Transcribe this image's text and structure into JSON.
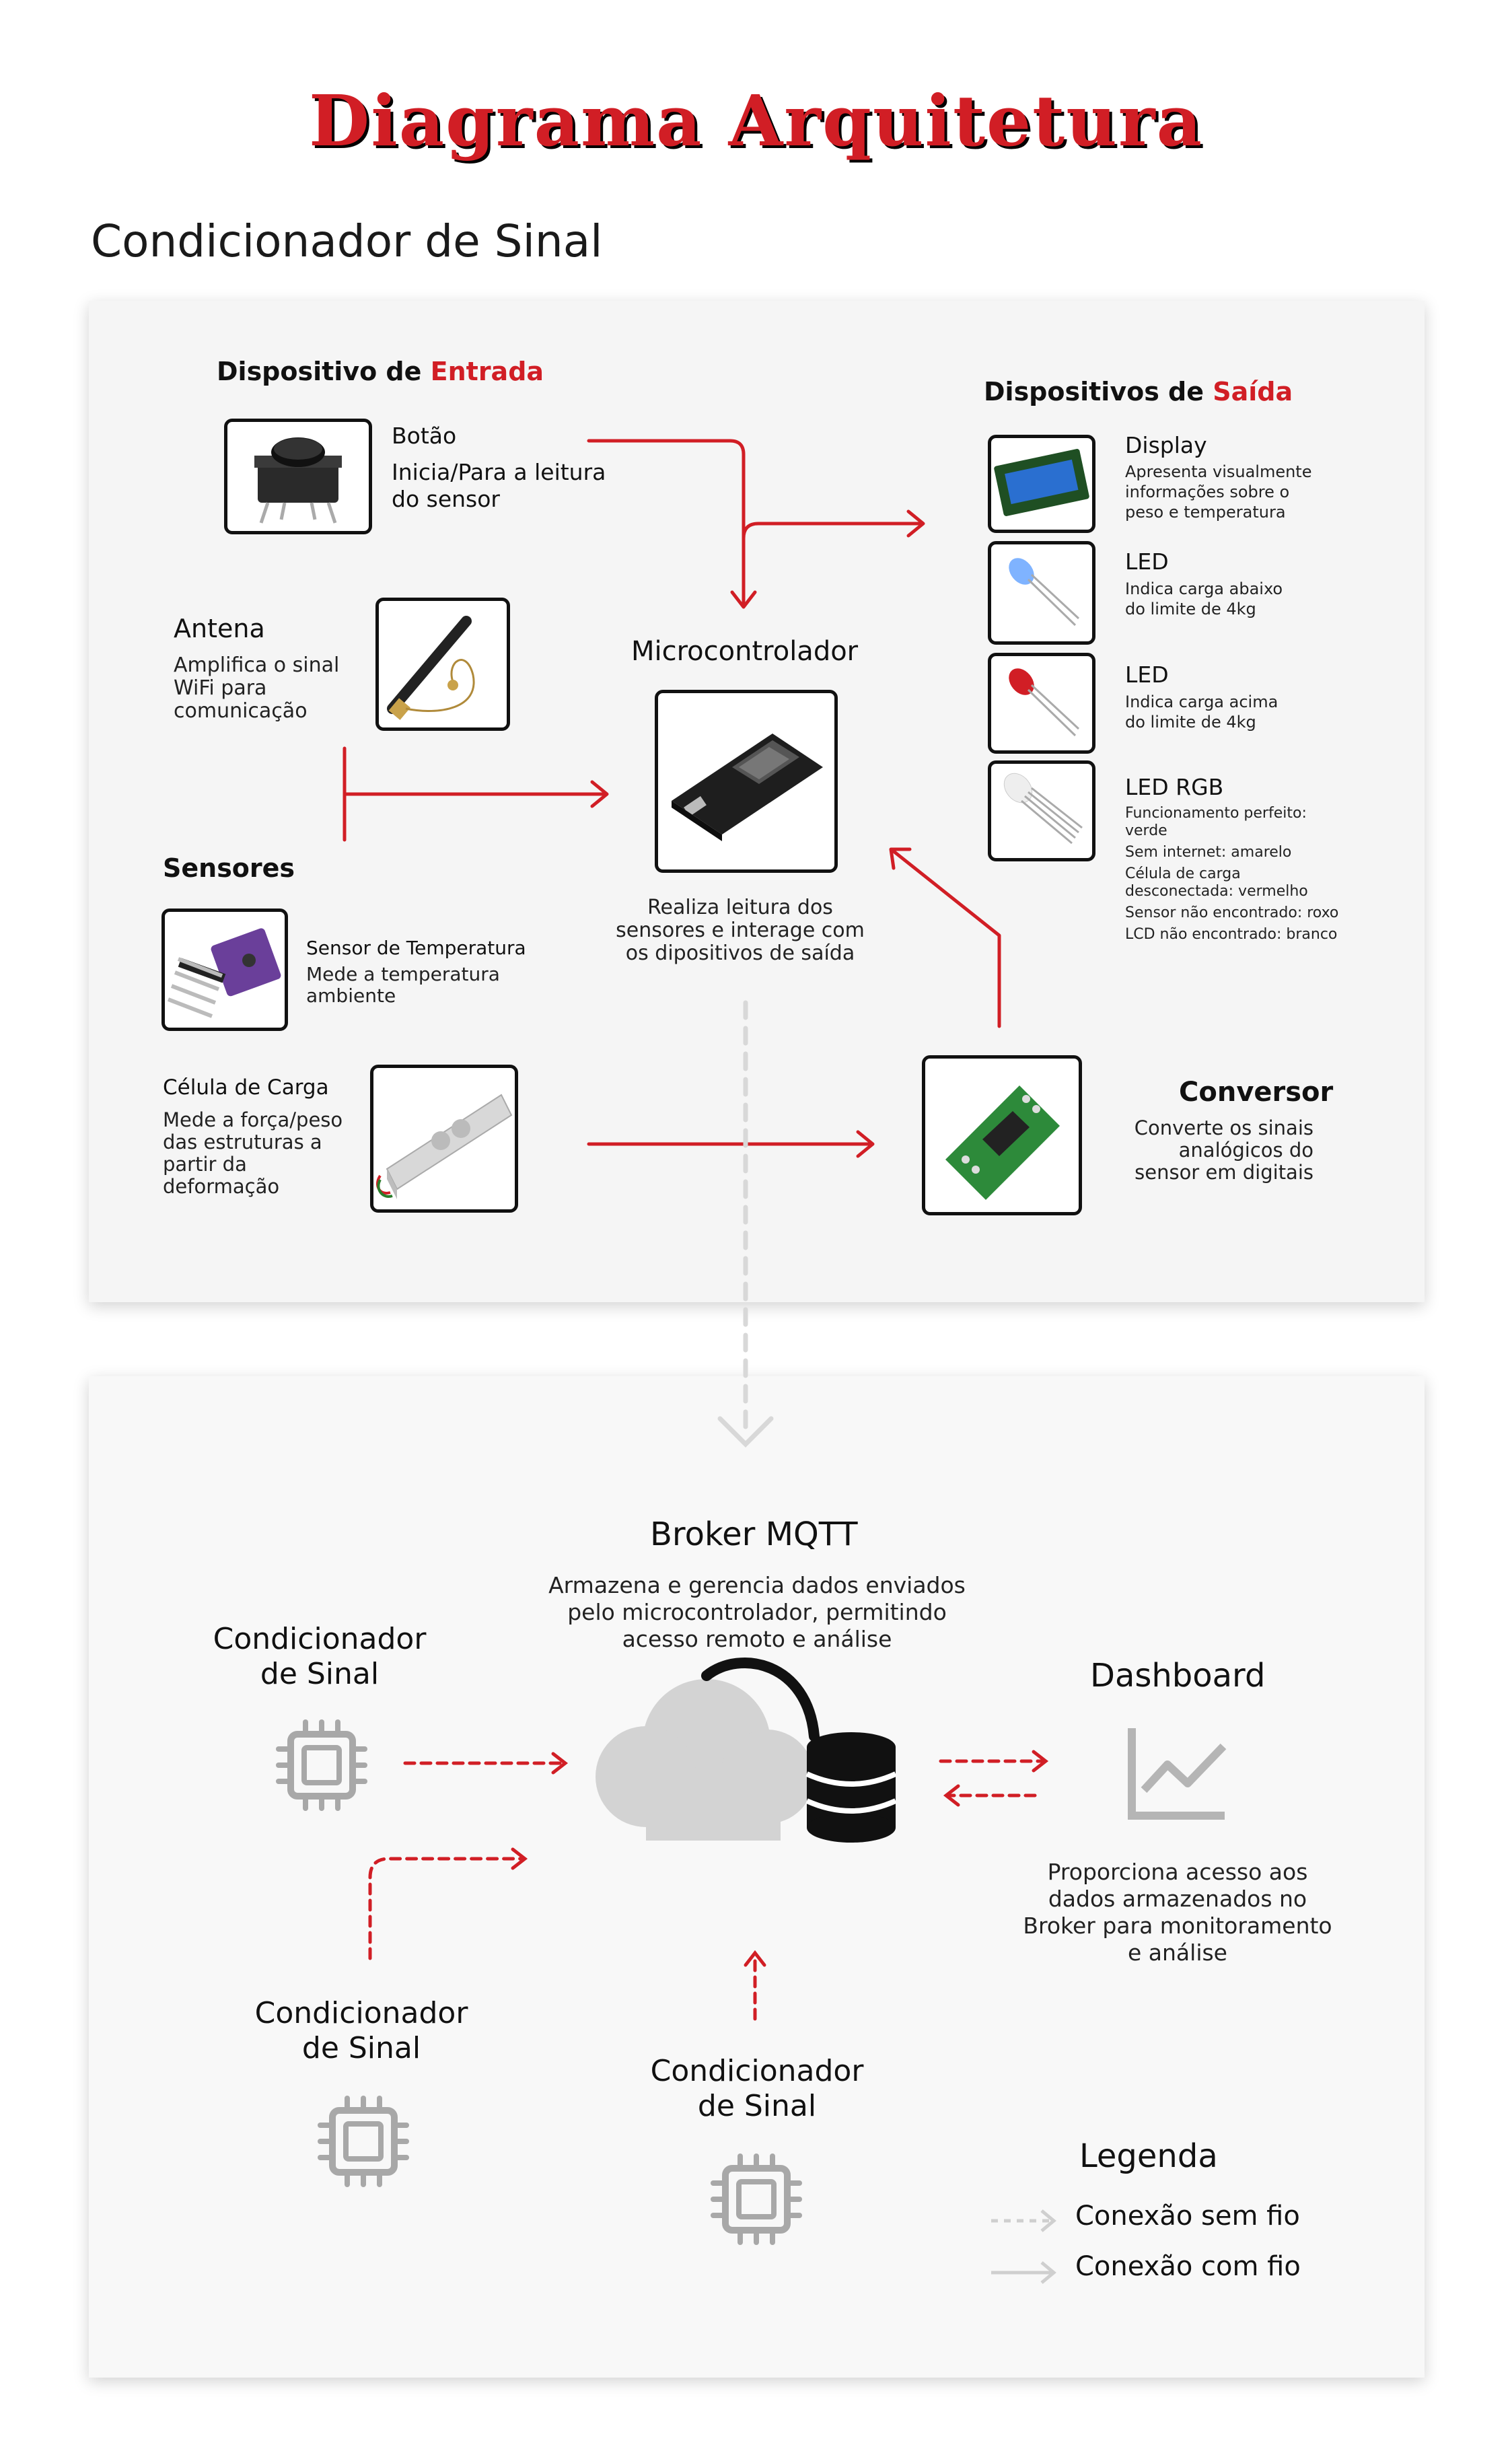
{
  "page_title": "Diagrama Arquitetura",
  "section_title": "Condicionador de Sinal",
  "input": {
    "heading_prefix": "Dispositivo de ",
    "heading_highlight": "Entrada",
    "button_name": "Botão",
    "button_desc": "Inicia/Para a leitura do sensor"
  },
  "antenna": {
    "name": "Antena",
    "desc": "Amplifica o sinal WiFi para comunicação"
  },
  "sensors": {
    "heading": "Sensores",
    "temp_name": "Sensor de Temperatura",
    "temp_desc": "Mede a temperatura ambiente",
    "load_name": "Célula de Carga",
    "load_desc": "Mede a força/peso das estruturas a partir da deformação"
  },
  "microcontroller": {
    "name": "Microcontrolador",
    "desc": "Realiza leitura dos sensores e interage com os dipositivos de saída"
  },
  "converter": {
    "name": "Conversor",
    "desc": "Converte os sinais analógicos do sensor em digitais"
  },
  "outputs": {
    "heading_prefix": "Dispositivos de ",
    "heading_highlight": "Saída",
    "display_name": "Display",
    "display_desc": "Apresenta visualmente informações sobre o peso e temperatura",
    "led1_name": "LED",
    "led1_desc": "Indica carga abaixo do limite de 4kg",
    "led2_name": "LED",
    "led2_desc": "Indica carga acima do limite de 4kg",
    "rgb_name": "LED RGB",
    "rgb_lines": [
      "Funcionamento perfeito: verde",
      "Sem internet: amarelo",
      "Célula de carga desconectada: vermelho",
      "Sensor não encontrado: roxo",
      "LCD não encontrado: branco"
    ]
  },
  "broker": {
    "name": "Broker MQTT",
    "desc": "Armazena e gerencia dados enviados pelo microcontrolador, permitindo acesso remoto e análise"
  },
  "dashboard": {
    "name": "Dashboard",
    "desc": "Proporciona acesso aos dados armazenados no Broker para monitoramento e análise"
  },
  "nodes": {
    "node1": "Condicionador de Sinal",
    "node2": "Condicionador de Sinal",
    "node3": "Condicionador de Sinal"
  },
  "legend": {
    "title": "Legenda",
    "wireless": "Conexão sem fio",
    "wired": "Conexão com fio"
  },
  "colors": {
    "accent": "#d11e25",
    "panel": "#f5f5f5",
    "gray_arrow": "#cfcfcf",
    "icon_gray": "#a8a8a8"
  }
}
